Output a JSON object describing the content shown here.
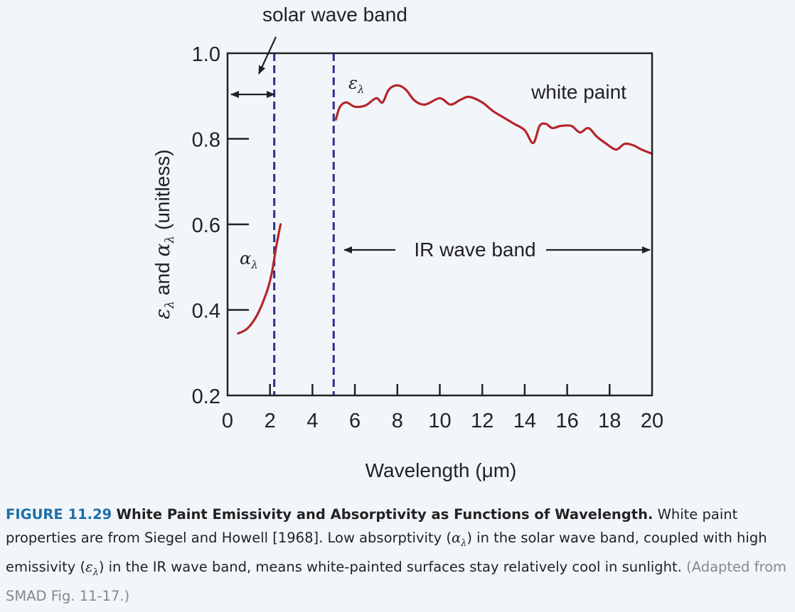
{
  "chart_data": {
    "type": "line",
    "title": "",
    "xlabel": "Wavelength (μm)",
    "ylabel": "ε_λ and α_λ (unitless)",
    "ylabel_parts": {
      "first": "ε",
      "and": " and ",
      "second": "α",
      "unit": " (unitless)",
      "sub": "λ"
    },
    "xlim": [
      0,
      20
    ],
    "ylim": [
      0.2,
      1.0
    ],
    "x_ticks": [
      0,
      2,
      4,
      6,
      8,
      10,
      12,
      14,
      16,
      18,
      20
    ],
    "y_ticks": [
      0.2,
      0.4,
      0.6,
      0.8,
      1.0
    ],
    "y_tick_labels": [
      "0.2",
      "0.4",
      "0.6",
      "0.8",
      "1.0"
    ],
    "series": [
      {
        "name": "α",
        "x": [
          0.5,
          0.9,
          1.3,
          1.6,
          1.9,
          2.1,
          2.3,
          2.5
        ],
        "y": [
          0.345,
          0.355,
          0.38,
          0.41,
          0.45,
          0.49,
          0.55,
          0.6
        ]
      },
      {
        "name": "ε",
        "x": [
          5.1,
          5.3,
          5.6,
          6.0,
          6.5,
          7.0,
          7.3,
          7.6,
          8.0,
          8.4,
          8.8,
          9.3,
          10.0,
          10.5,
          11.0,
          11.4,
          12.0,
          12.5,
          13.0,
          13.5,
          14.0,
          14.4,
          14.7,
          15.0,
          15.3,
          15.7,
          16.2,
          16.6,
          17.0,
          17.4,
          17.8,
          18.3,
          18.7,
          19.1,
          19.5,
          20.0
        ],
        "y": [
          0.845,
          0.875,
          0.885,
          0.875,
          0.878,
          0.895,
          0.885,
          0.915,
          0.925,
          0.915,
          0.89,
          0.88,
          0.895,
          0.88,
          0.892,
          0.898,
          0.885,
          0.865,
          0.85,
          0.835,
          0.82,
          0.79,
          0.83,
          0.835,
          0.825,
          0.83,
          0.83,
          0.815,
          0.825,
          0.805,
          0.79,
          0.775,
          0.788,
          0.785,
          0.775,
          0.765
        ]
      }
    ],
    "solar_band_x": 2.2,
    "ir_band_x": 5.0,
    "annotations": {
      "solar_wave_band": "solar wave band",
      "ir_wave_band": "IR wave band",
      "white_paint": "white paint",
      "epsilon_label": "ε",
      "alpha_label": "α",
      "lambda_sub": "λ"
    },
    "colors": {
      "curve": "#b5262b",
      "band_lines": "#2b2e8f",
      "axis": "#222222"
    },
    "grid": false,
    "legend": "none"
  },
  "caption": {
    "figure_number": "FIGURE 11.29",
    "title": "White Paint Emissivity and Absorptivity as Functions of Wavelength.",
    "text_before_alpha": "White paint properties are from Siegel and Howell [1968]. Low absorptivity (",
    "alpha_symbol": "α",
    "text_between": ") in the solar wave band, coupled with high emissivity (",
    "epsilon_symbol": "ε",
    "symbol_sub": "λ",
    "text_after_epsilon": ") in the IR wave band, means white-painted surfaces stay relatively cool in sunlight.",
    "source": "(Adapted from SMAD Fig. 11-17.)"
  }
}
